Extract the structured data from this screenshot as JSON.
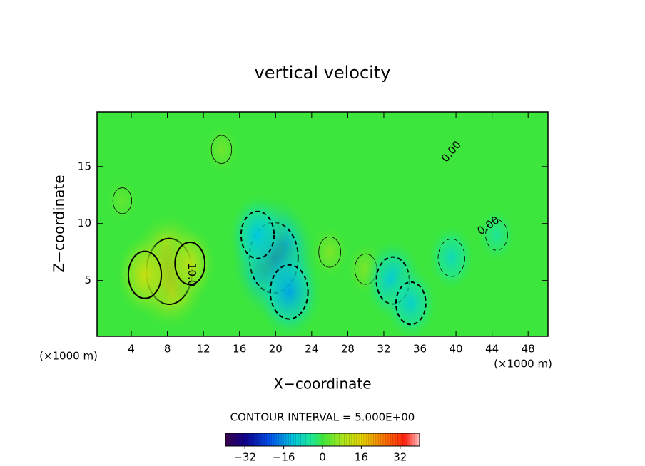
{
  "chart_data": {
    "type": "contour",
    "title": "vertical velocity",
    "x_label": "X−coordinate",
    "y_label": "Z−coordinate",
    "x_unit_left": "(×1000 m)",
    "x_unit_right": "(×1000 m)",
    "xlim": [
      0.2,
      50.2
    ],
    "ylim": [
      0.1,
      19.8
    ],
    "xticks": [
      4,
      8,
      12,
      16,
      20,
      24,
      28,
      32,
      36,
      40,
      44,
      48
    ],
    "yticks": [
      5,
      10,
      15
    ],
    "features": [
      {
        "x": 8.2,
        "y": 5.8,
        "value": 20
      },
      {
        "x": 5.5,
        "y": 5.5,
        "value": 12
      },
      {
        "x": 10.5,
        "y": 6.5,
        "value": 10
      },
      {
        "x": 19.8,
        "y": 7,
        "value": -22
      },
      {
        "x": 18,
        "y": 9,
        "value": -12
      },
      {
        "x": 21.5,
        "y": 4,
        "value": -15
      },
      {
        "x": 26,
        "y": 7.5,
        "value": 5
      },
      {
        "x": 30,
        "y": 6,
        "value": 5
      },
      {
        "x": 33,
        "y": 5,
        "value": -12
      },
      {
        "x": 35,
        "y": 3,
        "value": -10
      },
      {
        "x": 39.5,
        "y": 7,
        "value": -8
      },
      {
        "x": 44.5,
        "y": 9,
        "value": -5
      },
      {
        "x": 14,
        "y": 16.5,
        "value": 4
      },
      {
        "x": 3,
        "y": 12,
        "value": 3
      }
    ],
    "contour_labels": [
      {
        "x": 10.7,
        "y": 5.5,
        "label": "10.0",
        "angle": 90
      },
      {
        "x": 39.5,
        "y": 16.3,
        "label": "0.00",
        "angle": -50
      },
      {
        "x": 43.6,
        "y": 9.8,
        "label": "0.00",
        "angle": -35
      }
    ],
    "contour_interval": "CONTOUR INTERVAL =  5.000E+00",
    "colorbar": {
      "clim": [
        -40,
        40
      ],
      "cticks": [
        {
          "value": -32,
          "label": "−32"
        },
        {
          "value": -16,
          "label": "−16"
        },
        0,
        16,
        32
      ],
      "colormap": [
        [
          -40,
          "#3a0048"
        ],
        [
          -32,
          "#10008c"
        ],
        [
          -22,
          "#0050f0"
        ],
        [
          -12,
          "#00c8e0"
        ],
        [
          -4,
          "#20e890"
        ],
        [
          0,
          "#3ce63c"
        ],
        [
          8,
          "#a8e61e"
        ],
        [
          16,
          "#e8d800"
        ],
        [
          26,
          "#ff7000"
        ],
        [
          34,
          "#ff2010"
        ],
        [
          40,
          "#ffc0c0"
        ]
      ]
    }
  }
}
